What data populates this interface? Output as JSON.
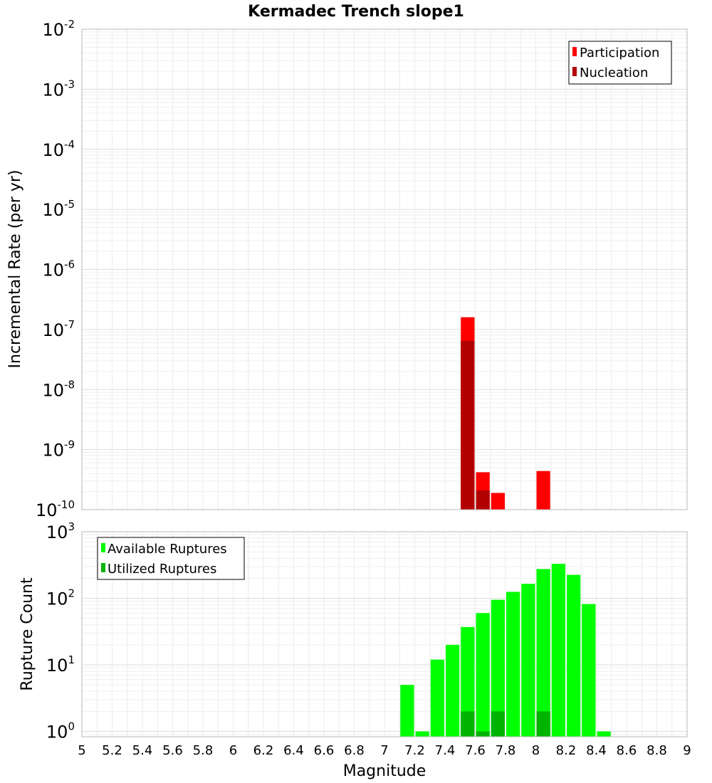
{
  "chart_data": {
    "title": "Kermadec Trench slope1",
    "xlabel": "Magnitude",
    "xlim": [
      5,
      9
    ],
    "x_ticks": [
      "5",
      "5.2",
      "5.4",
      "5.6",
      "5.8",
      "6",
      "6.2",
      "6.4",
      "6.6",
      "6.8",
      "7",
      "7.2",
      "7.4",
      "7.6",
      "7.8",
      "8",
      "8.2",
      "8.4",
      "8.6",
      "8.8",
      "9"
    ],
    "bin_width": 0.1,
    "panels": [
      {
        "type": "bar",
        "yscale": "log",
        "ylabel": "Incremental Rate (per yr)",
        "ylim_exponents": [
          -10,
          -2
        ],
        "y_tick_exponents": [
          "-2",
          "-3",
          "-4",
          "-5",
          "-6",
          "-7",
          "-8",
          "-9",
          "-10"
        ],
        "legend_position": "top-right",
        "grid": true,
        "series": [
          {
            "name": "Participation",
            "color": "#ff0000",
            "points": [
              {
                "x": 7.55,
                "y": 1.6e-07
              },
              {
                "x": 7.65,
                "y": 4.2e-10
              },
              {
                "x": 7.75,
                "y": 1.9e-10
              },
              {
                "x": 8.05,
                "y": 4.4e-10
              }
            ]
          },
          {
            "name": "Nucleation",
            "color": "#b30000",
            "points": [
              {
                "x": 7.55,
                "y": 6.5e-08
              },
              {
                "x": 7.65,
                "y": 2.1e-10
              }
            ]
          }
        ]
      },
      {
        "type": "bar",
        "yscale": "log",
        "ylabel": "Rupture Count",
        "ylim_exponents": [
          -0.08,
          3
        ],
        "y_tick_exponents": [
          "3",
          "2",
          "1",
          "0"
        ],
        "legend_position": "top-left",
        "grid": true,
        "series": [
          {
            "name": "Available Ruptures",
            "color": "#00ff00",
            "points": [
              {
                "x": 7.15,
                "y": 5
              },
              {
                "x": 7.25,
                "y": 1
              },
              {
                "x": 7.35,
                "y": 12
              },
              {
                "x": 7.45,
                "y": 20
              },
              {
                "x": 7.55,
                "y": 37
              },
              {
                "x": 7.65,
                "y": 60
              },
              {
                "x": 7.75,
                "y": 95
              },
              {
                "x": 7.85,
                "y": 125
              },
              {
                "x": 7.95,
                "y": 165
              },
              {
                "x": 8.05,
                "y": 275
              },
              {
                "x": 8.15,
                "y": 330
              },
              {
                "x": 8.25,
                "y": 225
              },
              {
                "x": 8.35,
                "y": 82
              },
              {
                "x": 8.45,
                "y": 1
              }
            ]
          },
          {
            "name": "Utilized Ruptures",
            "color": "#00b300",
            "points": [
              {
                "x": 7.55,
                "y": 2
              },
              {
                "x": 7.65,
                "y": 1
              },
              {
                "x": 7.75,
                "y": 2
              },
              {
                "x": 8.05,
                "y": 2
              }
            ]
          }
        ]
      }
    ]
  }
}
